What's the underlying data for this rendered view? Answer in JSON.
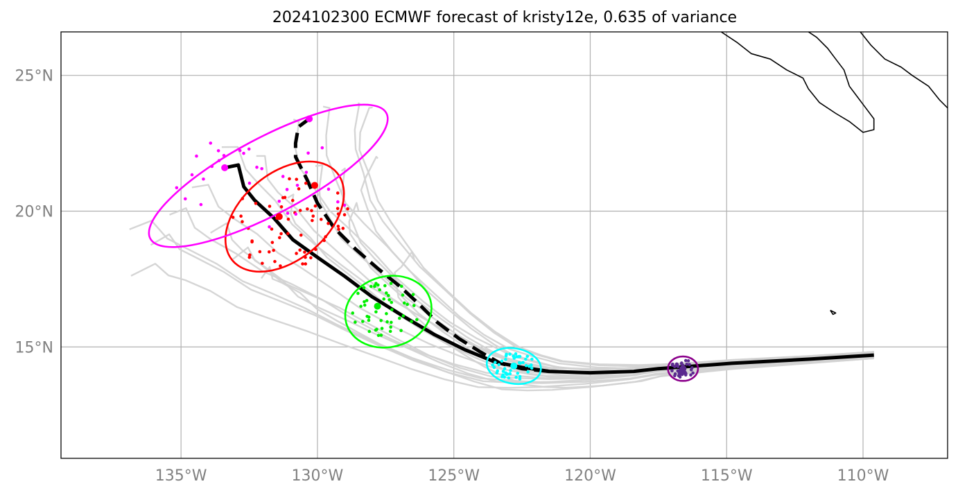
{
  "title": "2024102300 ECMWF forecast of kristy12e, 0.635 of variance",
  "axes": {
    "lon_range": [
      -139.4,
      -106.9
    ],
    "lat_range": [
      10.9,
      26.6
    ],
    "lon_ticks": [
      -135,
      -130,
      -125,
      -120,
      -115,
      -110
    ],
    "lon_tick_labels": [
      "135°W",
      "130°W",
      "125°W",
      "120°W",
      "115°W",
      "110°W"
    ],
    "lat_ticks": [
      15,
      20,
      25
    ],
    "lat_tick_labels": [
      "15°N",
      "20°N",
      "25°N"
    ],
    "gridlines": true
  },
  "colors": {
    "ensemble": "#d3d3d3",
    "mean_track": "#000000",
    "grid": "#b0b0b0",
    "tick_label": "#808080",
    "coast": "#000000"
  },
  "chart_data": {
    "type": "map",
    "forecast_time": "2024102300",
    "model": "ECMWF",
    "storm": "kristy12e",
    "variance_fraction": 0.635,
    "mean_track": [
      [
        -109.6,
        14.7
      ],
      [
        -112.0,
        14.55
      ],
      [
        -114.8,
        14.4
      ],
      [
        -117.5,
        14.2
      ],
      [
        -118.4,
        14.1
      ],
      [
        -120.0,
        14.05
      ],
      [
        -121.5,
        14.1
      ],
      [
        -122.5,
        14.25
      ],
      [
        -123.5,
        14.45
      ],
      [
        -124.6,
        14.9
      ],
      [
        -125.7,
        15.45
      ],
      [
        -126.8,
        16.1
      ],
      [
        -128.0,
        16.85
      ],
      [
        -129.0,
        17.6
      ],
      [
        -130.0,
        18.3
      ],
      [
        -130.9,
        18.95
      ],
      [
        -131.6,
        19.75
      ],
      [
        -132.3,
        20.4
      ],
      [
        -132.7,
        20.9
      ],
      [
        -132.9,
        21.7
      ],
      [
        -133.4,
        21.6
      ]
    ],
    "alt_track": [
      [
        -121.5,
        14.1
      ],
      [
        -122.5,
        14.2
      ],
      [
        -123.3,
        14.4
      ],
      [
        -124.0,
        14.8
      ],
      [
        -124.8,
        15.3
      ],
      [
        -125.6,
        15.9
      ],
      [
        -126.3,
        16.6
      ],
      [
        -127.0,
        17.25
      ],
      [
        -127.8,
        17.9
      ],
      [
        -128.6,
        18.6
      ],
      [
        -129.4,
        19.4
      ],
      [
        -130.0,
        20.3
      ],
      [
        -130.4,
        21.2
      ],
      [
        -130.8,
        22.0
      ],
      [
        -130.8,
        22.5
      ],
      [
        -130.7,
        23.1
      ],
      [
        -130.3,
        23.4
      ]
    ],
    "ensemble_tracks": [
      {
        "end": [
          -136.8,
          19.3
        ],
        "spread": 0.9
      },
      {
        "end": [
          -136.2,
          18.8
        ],
        "spread": 0.7
      },
      {
        "end": [
          -136.9,
          17.7
        ],
        "spread": 0.3
      },
      {
        "end": [
          -133.4,
          22.4
        ],
        "spread": 1.0
      },
      {
        "end": [
          -132.2,
          22.0
        ],
        "spread": 0.8
      },
      {
        "end": [
          -131.0,
          23.3
        ],
        "spread": 1.2
      },
      {
        "end": [
          -129.8,
          23.8
        ],
        "spread": 1.4
      },
      {
        "end": [
          -128.4,
          24.0
        ],
        "spread": 1.6
      },
      {
        "end": [
          -128.0,
          23.9
        ],
        "spread": 1.8
      },
      {
        "end": [
          -127.9,
          22.0
        ],
        "spread": 2.0
      },
      {
        "end": [
          -126.4,
          18.2
        ],
        "spread": 2.2
      },
      {
        "end": [
          -134.5,
          20.8
        ],
        "spread": 0.6
      },
      {
        "end": [
          -135.5,
          19.8
        ],
        "spread": 0.5
      },
      {
        "end": [
          -134.0,
          19.2
        ],
        "spread": 0.4
      },
      {
        "end": [
          -133.0,
          18.3
        ],
        "spread": 0.2
      },
      {
        "end": [
          -132.0,
          17.6
        ],
        "spread": 0.0
      },
      {
        "end": [
          -131.2,
          20.5
        ],
        "spread": 0.9
      },
      {
        "end": [
          -130.1,
          21.6
        ],
        "spread": 1.1
      },
      {
        "end": [
          -129.0,
          21.4
        ],
        "spread": 1.3
      },
      {
        "end": [
          -128.5,
          20.0
        ],
        "spread": 1.5
      }
    ],
    "uncertainty_ellipses": [
      {
        "color": "#8b008b",
        "center": [
          -116.6,
          14.2
        ],
        "rx_deg": 0.55,
        "ry_deg": 0.45,
        "angle": 0
      },
      {
        "color": "#00ffff",
        "center": [
          -122.8,
          14.3
        ],
        "rx_deg": 1.0,
        "ry_deg": 0.65,
        "angle": 10
      },
      {
        "color": "#00ff00",
        "center": [
          -127.4,
          16.3
        ],
        "rx_deg": 1.6,
        "ry_deg": 1.3,
        "angle": -15
      },
      {
        "color": "#ff0000",
        "center": [
          -131.2,
          19.8
        ],
        "rx_deg": 2.5,
        "ry_deg": 1.6,
        "angle": -40
      },
      {
        "color": "#ff00ff",
        "center": [
          -131.8,
          21.3
        ],
        "rx_deg": 4.9,
        "ry_deg": 1.4,
        "angle": -28
      }
    ],
    "scatter_groups": [
      {
        "color": "#5b2a8f",
        "center": [
          -116.6,
          14.2
        ],
        "spread": [
          0.45,
          0.35
        ],
        "count": 40
      },
      {
        "color": "#00ffff",
        "center": [
          -122.8,
          14.3
        ],
        "spread": [
          0.8,
          0.5
        ],
        "count": 45
      },
      {
        "color": "#00ee00",
        "center": [
          -127.5,
          16.4
        ],
        "spread": [
          1.3,
          1.0
        ],
        "count": 50
      },
      {
        "color": "#ff0000",
        "center": [
          -131.0,
          19.6
        ],
        "spread": [
          2.2,
          1.8
        ],
        "count": 60
      },
      {
        "color": "#ff00ff",
        "center": [
          -131.9,
          21.1
        ],
        "spread": [
          3.4,
          1.8
        ],
        "count": 30
      }
    ],
    "large_markers": [
      {
        "color": "#ff00ff",
        "lonlat": [
          -133.4,
          21.6
        ]
      },
      {
        "color": "#ff00ff",
        "lonlat": [
          -130.3,
          23.4
        ]
      },
      {
        "color": "#ff0000",
        "lonlat": [
          -131.4,
          19.8
        ]
      },
      {
        "color": "#ff0000",
        "lonlat": [
          -130.1,
          20.95
        ]
      },
      {
        "color": "#00ee00",
        "lonlat": [
          -127.8,
          16.5
        ]
      },
      {
        "color": "#00ffff",
        "lonlat": [
          -122.8,
          14.3
        ]
      },
      {
        "color": "#5b2a8f",
        "lonlat": [
          -116.6,
          14.2
        ]
      }
    ],
    "coastlines": [
      [
        [
          -115.2,
          26.6
        ],
        [
          -114.6,
          26.2
        ],
        [
          -114.1,
          25.8
        ],
        [
          -113.4,
          25.6
        ],
        [
          -112.8,
          25.2
        ],
        [
          -112.2,
          24.9
        ],
        [
          -112.0,
          24.5
        ],
        [
          -111.6,
          24.0
        ],
        [
          -111.0,
          23.6
        ],
        [
          -110.5,
          23.3
        ],
        [
          -110.0,
          22.9
        ],
        [
          -109.6,
          23.0
        ],
        [
          -109.6,
          23.4
        ],
        [
          -109.9,
          23.8
        ],
        [
          -110.2,
          24.2
        ],
        [
          -110.5,
          24.6
        ],
        [
          -110.7,
          25.2
        ],
        [
          -111.0,
          25.6
        ],
        [
          -111.3,
          26.0
        ],
        [
          -111.7,
          26.4
        ],
        [
          -112.0,
          26.6
        ]
      ],
      [
        [
          -110.1,
          26.6
        ],
        [
          -109.7,
          26.1
        ],
        [
          -109.2,
          25.6
        ],
        [
          -108.6,
          25.3
        ],
        [
          -108.2,
          25.0
        ],
        [
          -107.6,
          24.6
        ],
        [
          -107.2,
          24.1
        ],
        [
          -106.9,
          23.8
        ]
      ],
      [
        [
          -111.2,
          16.35
        ],
        [
          -111.0,
          16.25
        ],
        [
          -111.1,
          16.2
        ],
        [
          -111.2,
          16.35
        ]
      ]
    ]
  }
}
